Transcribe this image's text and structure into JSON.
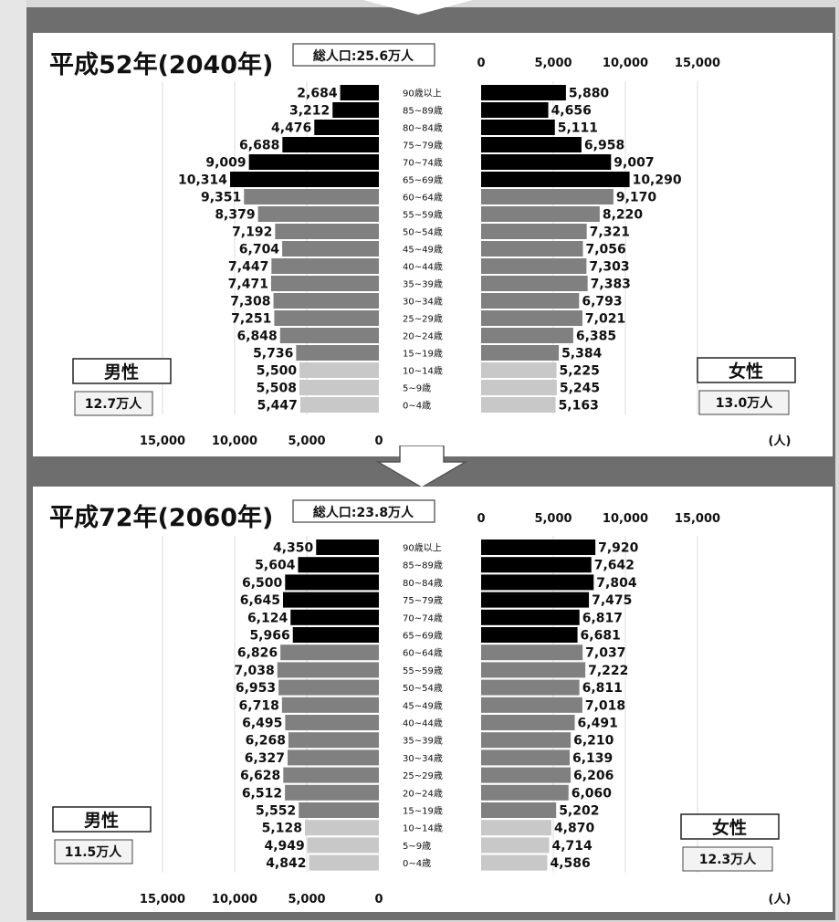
{
  "colors": {
    "elderly": "#000000",
    "working": "#808080",
    "young": "#c8c8c8",
    "frame": "#6e6e6e"
  },
  "chart_data": [
    {
      "type": "bar",
      "title": "平成52年(2040年)",
      "total_label": "総人口:25.6万人",
      "unit_label": "(人)",
      "male_label": "男性",
      "male_total": "12.7万人",
      "female_label": "女性",
      "female_total": "13.0万人",
      "left_ticks": [
        "15,000",
        "10,000",
        "5,000",
        "0"
      ],
      "right_ticks": [
        "0",
        "5,000",
        "10,000",
        "15,000"
      ],
      "xlim": [
        0,
        15000
      ],
      "categories": [
        "90歳以上",
        "85~89歳",
        "80~84歳",
        "75~79歳",
        "70~74歳",
        "65~69歳",
        "60~64歳",
        "55~59歳",
        "50~54歳",
        "45~49歳",
        "40~44歳",
        "35~39歳",
        "30~34歳",
        "25~29歳",
        "20~24歳",
        "15~19歳",
        "10~14歳",
        "5~9歳",
        "0~4歳"
      ],
      "series": [
        {
          "name": "男性",
          "values": [
            2684,
            3212,
            4476,
            6688,
            9009,
            10314,
            9351,
            8379,
            7192,
            6704,
            7447,
            7471,
            7308,
            7251,
            6848,
            5736,
            5500,
            5508,
            5447
          ],
          "labels": [
            "2,684",
            "3,212",
            "4,476",
            "6,688",
            "9,009",
            "10,314",
            "9,351",
            "8,379",
            "7,192",
            "6,704",
            "7,447",
            "7,471",
            "7,308",
            "7,251",
            "6,848",
            "5,736",
            "5,500",
            "5,508",
            "5,447"
          ]
        },
        {
          "name": "女性",
          "values": [
            5880,
            4656,
            5111,
            6958,
            9007,
            10290,
            9170,
            8220,
            7321,
            7056,
            7303,
            7383,
            6793,
            7021,
            6385,
            5384,
            5225,
            5245,
            5163
          ],
          "labels": [
            "5,880",
            "4,656",
            "5,111",
            "6,958",
            "9,007",
            "10,290",
            "9,170",
            "8,220",
            "7,321",
            "7,056",
            "7,303",
            "7,383",
            "6,793",
            "7,021",
            "6,385",
            "5,384",
            "5,225",
            "5,245",
            "5,163"
          ]
        }
      ]
    },
    {
      "type": "bar",
      "title": "平成72年(2060年)",
      "total_label": "総人口:23.8万人",
      "unit_label": "(人)",
      "male_label": "男性",
      "male_total": "11.5万人",
      "female_label": "女性",
      "female_total": "12.3万人",
      "left_ticks": [
        "15,000",
        "10,000",
        "5,000",
        "0"
      ],
      "right_ticks": [
        "0",
        "5,000",
        "10,000",
        "15,000"
      ],
      "xlim": [
        0,
        15000
      ],
      "categories": [
        "90歳以上",
        "85~89歳",
        "80~84歳",
        "75~79歳",
        "70~74歳",
        "65~69歳",
        "60~64歳",
        "55~59歳",
        "50~54歳",
        "45~49歳",
        "40~44歳",
        "35~39歳",
        "30~34歳",
        "25~29歳",
        "20~24歳",
        "15~19歳",
        "10~14歳",
        "5~9歳",
        "0~4歳"
      ],
      "series": [
        {
          "name": "男性",
          "values": [
            4350,
            5604,
            6500,
            6645,
            6124,
            5966,
            6826,
            7038,
            6953,
            6718,
            6495,
            6268,
            6327,
            6628,
            6512,
            5552,
            5128,
            4949,
            4842
          ],
          "labels": [
            "4,350",
            "5,604",
            "6,500",
            "6,645",
            "6,124",
            "5,966",
            "6,826",
            "7,038",
            "6,953",
            "6,718",
            "6,495",
            "6,268",
            "6,327",
            "6,628",
            "6,512",
            "5,552",
            "5,128",
            "4,949",
            "4,842"
          ]
        },
        {
          "name": "女性",
          "values": [
            7920,
            7642,
            7804,
            7475,
            6817,
            6681,
            7037,
            7222,
            6811,
            7018,
            6491,
            6210,
            6139,
            6206,
            6060,
            5202,
            4870,
            4714,
            4586
          ],
          "labels": [
            "7,920",
            "7,642",
            "7,804",
            "7,475",
            "6,817",
            "6,681",
            "7,037",
            "7,222",
            "6,811",
            "7,018",
            "6,491",
            "6,210",
            "6,139",
            "6,206",
            "6,060",
            "5,202",
            "4,870",
            "4,714",
            "4,586"
          ]
        }
      ]
    }
  ]
}
